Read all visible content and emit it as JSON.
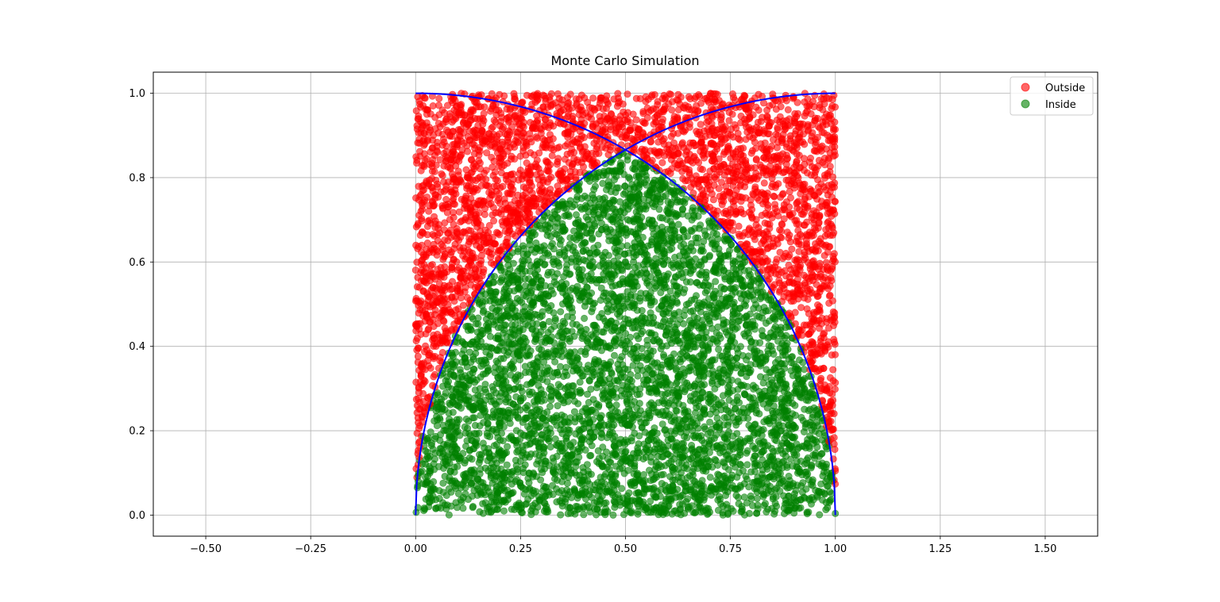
{
  "chart_data": {
    "type": "scatter",
    "title": "Monte Carlo Simulation",
    "xlabel": "",
    "ylabel": "",
    "xlim": [
      -0.625,
      1.625
    ],
    "ylim": [
      -0.05,
      1.05
    ],
    "x_ticks": [
      "−0.50",
      "−0.25",
      "0.00",
      "0.25",
      "0.50",
      "0.75",
      "1.00",
      "1.25",
      "1.50"
    ],
    "x_tick_values": [
      -0.5,
      -0.25,
      0.0,
      0.25,
      0.5,
      0.75,
      1.0,
      1.25,
      1.5
    ],
    "y_ticks": [
      "0.0",
      "0.2",
      "0.4",
      "0.6",
      "0.8",
      "1.0"
    ],
    "y_tick_values": [
      0.0,
      0.2,
      0.4,
      0.6,
      0.8,
      1.0
    ],
    "grid": true,
    "legend_position": "top-right",
    "sample_region": {
      "x": [
        0,
        1
      ],
      "y": [
        0,
        1
      ]
    },
    "series": [
      {
        "name": "Outside",
        "color": "#ff0000",
        "alpha": 0.6,
        "kind": "scatter"
      },
      {
        "name": "Inside",
        "color": "#008000",
        "alpha": 0.6,
        "kind": "scatter"
      }
    ],
    "curves": [
      {
        "kind": "line",
        "color": "#0000ff",
        "equation": "y = sqrt(1 - x^2)",
        "x_range": [
          0,
          1
        ]
      },
      {
        "kind": "line",
        "color": "#0000ff",
        "equation": "y = sqrt(1 - (x - 1)^2)",
        "x_range": [
          0,
          1
        ]
      }
    ],
    "intersection": {
      "x": 0.5,
      "y": 0.866
    }
  }
}
